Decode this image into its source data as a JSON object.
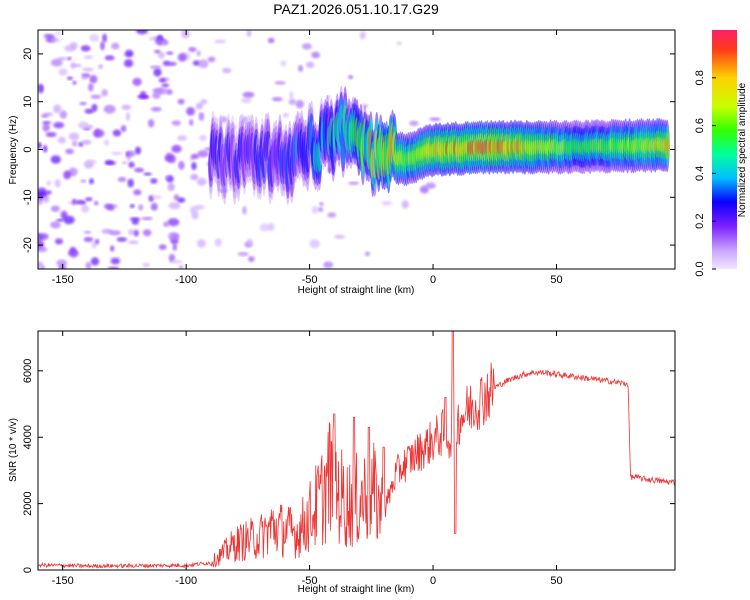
{
  "figure": {
    "title": "PAZ1.2026.051.10.17.G29"
  },
  "chart_data": [
    {
      "type": "heatmap",
      "id": "spectrogram",
      "xlabel": "Height of straight line (km)",
      "ylabel": "Frequency (Hz)",
      "xlim": [
        -160,
        98
      ],
      "ylim": [
        -25,
        25
      ],
      "x_ticks": [
        -150,
        -100,
        -50,
        0,
        50
      ],
      "y_ticks": [
        -20,
        -10,
        0,
        10,
        20
      ],
      "colorbar": {
        "label": "Normalized spectral amplitude",
        "range": [
          0,
          1
        ],
        "ticks": [
          0.0,
          0.2,
          0.4,
          0.6,
          0.8
        ],
        "colormap": [
          "#f2e6ff",
          "#c9a3ff",
          "#7a1fff",
          "#0b00ff",
          "#00bfff",
          "#00ff9c",
          "#33ff00",
          "#c8ff00",
          "#ffd000",
          "#ff3a1a",
          "#ff1f6b"
        ]
      },
      "ridge": {
        "description_points": [
          {
            "x": -90,
            "y": -2,
            "amp": 0.25
          },
          {
            "x": -60,
            "y": -2,
            "amp": 0.3
          },
          {
            "x": -35,
            "y": 4,
            "amp": 0.5
          },
          {
            "x": -20,
            "y": -1.5,
            "amp": 0.9
          },
          {
            "x": -10,
            "y": -2,
            "amp": 0.7
          },
          {
            "x": 0,
            "y": 0,
            "amp": 0.85
          },
          {
            "x": 25,
            "y": 0.5,
            "amp": 0.95
          },
          {
            "x": 60,
            "y": 0.5,
            "amp": 0.6
          },
          {
            "x": 95,
            "y": 1,
            "amp": 0.8
          }
        ]
      }
    },
    {
      "type": "line",
      "id": "snr",
      "xlabel": "Height of straight line (km)",
      "ylabel": "SNR (10 * v/v)",
      "xlim": [
        -160,
        98
      ],
      "ylim": [
        0,
        7200
      ],
      "x_ticks": [
        -150,
        -100,
        -50,
        0,
        50
      ],
      "y_ticks": [
        0,
        2000,
        4000,
        6000
      ],
      "color": "#ee3333",
      "series": [
        {
          "name": "SNR",
          "x": [
            -160,
            -140,
            -120,
            -100,
            -90,
            -85,
            -80,
            -75,
            -70,
            -65,
            -60,
            -55,
            -50,
            -45,
            -42,
            -40,
            -35,
            -30,
            -25,
            -20,
            -15,
            -10,
            -5,
            0,
            5,
            8,
            10,
            15,
            20,
            25,
            30,
            35,
            40,
            45,
            50,
            55,
            60,
            65,
            70,
            75,
            79,
            80,
            82,
            85,
            90,
            95,
            98
          ],
          "y": [
            150,
            120,
            130,
            140,
            220,
            500,
            800,
            900,
            1000,
            1300,
            1200,
            1100,
            1600,
            2200,
            2800,
            2500,
            2000,
            2100,
            2400,
            1700,
            2900,
            3300,
            3600,
            3900,
            4200,
            3800,
            4500,
            4900,
            5200,
            5500,
            5700,
            5850,
            5950,
            5950,
            5900,
            5850,
            5800,
            5750,
            5700,
            5650,
            5600,
            2800,
            2800,
            2750,
            2700,
            2650,
            2650
          ],
          "spikes": [
            {
              "x": -40,
              "y": 4700
            },
            {
              "x": -32,
              "y": 4600
            },
            {
              "x": -26,
              "y": 4300
            },
            {
              "x": -20,
              "y": 3700
            },
            {
              "x": 5,
              "y": 5200
            },
            {
              "x": 8,
              "y": 7200
            },
            {
              "x": 9,
              "y": 1100
            }
          ]
        }
      ]
    }
  ]
}
